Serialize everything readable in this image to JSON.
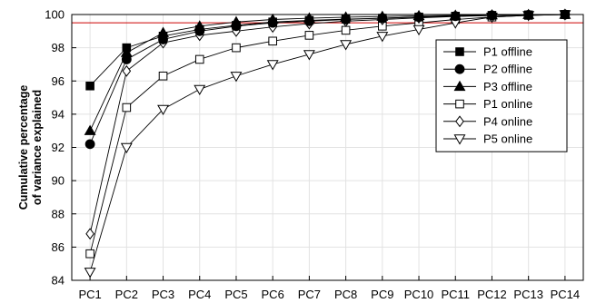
{
  "chart_data": {
    "type": "line",
    "title": "",
    "xlabel": "",
    "ylabel_lines": [
      "Cumulative percentage",
      "of variance explained"
    ],
    "categories": [
      "PC1",
      "PC2",
      "PC3",
      "PC4",
      "PC5",
      "PC6",
      "PC7",
      "PC8",
      "PC9",
      "PC10",
      "PC11",
      "PC12",
      "PC13",
      "PC14"
    ],
    "ylim": [
      84,
      100
    ],
    "yticks": [
      "84",
      "86",
      "88",
      "90",
      "92",
      "94",
      "96",
      "98",
      "100"
    ],
    "grid": true,
    "threshold": {
      "value": 99.5,
      "color": "#cc0000"
    },
    "legend_position": "right",
    "series": [
      {
        "name": "P1 offline",
        "marker": "square",
        "filled": true,
        "values": [
          95.7,
          98.0,
          98.7,
          99.1,
          99.35,
          99.55,
          99.65,
          99.72,
          99.78,
          99.85,
          99.9,
          99.95,
          99.98,
          100
        ]
      },
      {
        "name": "P2 offline",
        "marker": "circle",
        "filled": true,
        "values": [
          92.2,
          97.3,
          98.5,
          99.0,
          99.3,
          99.5,
          99.6,
          99.7,
          99.78,
          99.85,
          99.9,
          99.95,
          99.98,
          100
        ]
      },
      {
        "name": "P3 offline",
        "marker": "triangle-up",
        "filled": true,
        "values": [
          93.0,
          97.7,
          98.9,
          99.3,
          99.55,
          99.7,
          99.78,
          99.84,
          99.88,
          99.92,
          99.95,
          99.97,
          99.99,
          100
        ]
      },
      {
        "name": "P1 online",
        "marker": "square",
        "filled": false,
        "values": [
          85.6,
          94.4,
          96.3,
          97.3,
          98.0,
          98.4,
          98.75,
          99.05,
          99.3,
          99.5,
          99.7,
          99.85,
          99.95,
          100
        ]
      },
      {
        "name": "P4 online",
        "marker": "diamond",
        "filled": false,
        "values": [
          86.8,
          96.6,
          98.3,
          98.75,
          99.0,
          99.25,
          99.45,
          99.6,
          99.7,
          99.8,
          99.88,
          99.94,
          99.98,
          100
        ]
      },
      {
        "name": "P5 online",
        "marker": "triangle-down",
        "filled": false,
        "values": [
          84.5,
          92.0,
          94.3,
          95.5,
          96.3,
          97.0,
          97.6,
          98.2,
          98.7,
          99.1,
          99.5,
          99.85,
          99.95,
          100
        ]
      }
    ]
  }
}
